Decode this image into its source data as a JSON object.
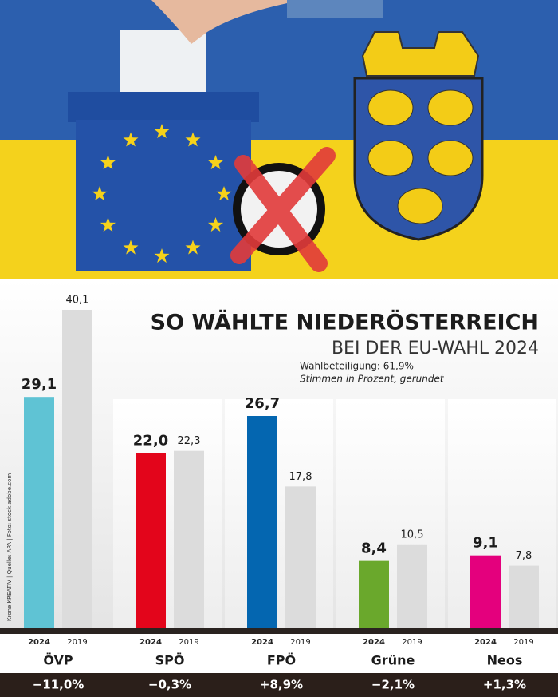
{
  "chart_data": {
    "type": "bar",
    "title": "SO WÄHLTE NIEDERÖSTERREICH",
    "subtitle": "BEI DER EU-WAHL 2024",
    "notes": [
      "Wahlbeteiligung: 61,9%",
      "Stimmen in Prozent, gerundet"
    ],
    "credit": "Krone KREATIV | Quelle: APA | Foto: stock.adobe.com",
    "categories": [
      "ÖVP",
      "SPÖ",
      "FPÖ",
      "Grüne",
      "Neos"
    ],
    "series": [
      {
        "name": "2024",
        "colors": [
          "#5fc3d4",
          "#e3051b",
          "#0466b0",
          "#6aa82c",
          "#e4007d"
        ],
        "values": [
          29.1,
          22.0,
          26.7,
          8.4,
          9.1
        ],
        "value_labels": [
          "29,1",
          "22,0",
          "26,7",
          "8,4",
          "9,1"
        ]
      },
      {
        "name": "2019",
        "color": "#dcdcdc",
        "values": [
          40.1,
          22.3,
          17.8,
          10.5,
          7.8
        ],
        "value_labels": [
          "40,1",
          "22,3",
          "17,8",
          "10,5",
          "7,8"
        ]
      }
    ],
    "change_labels": [
      "−11,0%",
      "−0,3%",
      "+8,9%",
      "−2,1%",
      "+1,3%"
    ],
    "ylim": [
      0,
      40
    ]
  }
}
